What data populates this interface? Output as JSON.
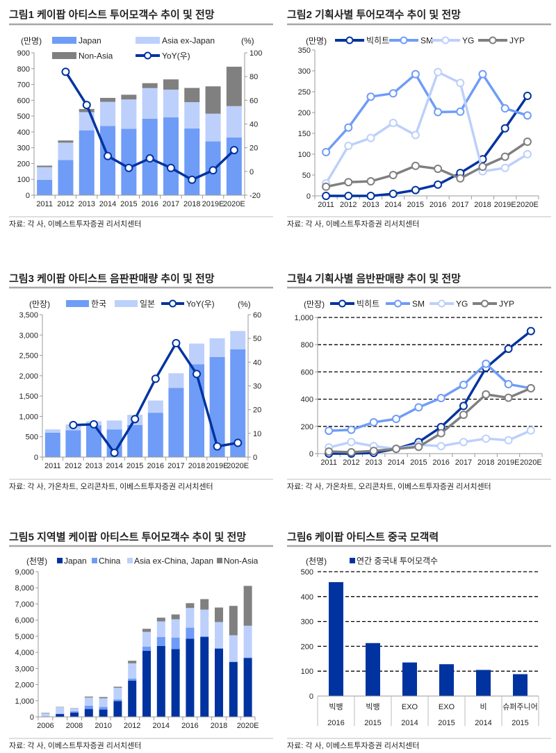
{
  "figures": [
    {
      "title": "그림1 케이팝 아티스트 투어모객수 추이 및 전망",
      "source": "자료: 각 사, 이베스트투자증권 리서치센터"
    },
    {
      "title": "그림2 기획사별 투어모객수 추이 및 전망",
      "source": "자료: 각 사, 이베스트투자증권 리서치센터"
    },
    {
      "title": "그림3 케이팝 아티스트 음판판매량 추이 및 전망",
      "source": "자료: 각 사, 가온차트, 오리콘차트, 이베스트투자증권 리서치센터"
    },
    {
      "title": "그림4 기획사별 음반판매량 추이 및 전망",
      "source": "자료: 각 사, 가온차트, 오리콘차트, 이베스트투자증권 리서치센터"
    },
    {
      "title": "그림5 지역별 케이팝 아티스트 투어모객수 추이 및 전망",
      "source": "자료: 각 사, 이베스트투자증권 리서치센터"
    },
    {
      "title": "그림6 케이팝 아티스트 중국 모객력",
      "source": "자료: 각 사, 이베스트투자증권 리서치센터"
    }
  ],
  "chart_data": [
    {
      "type": "bar",
      "stacked": true,
      "ylabel": "(만명)",
      "y2label": "(%)",
      "ylim": [
        0,
        900
      ],
      "ytick_step": 100,
      "y2lim": [
        -20,
        100
      ],
      "y2tick_step": 20,
      "grid": false,
      "categories": [
        "2011",
        "2012",
        "2013",
        "2014",
        "2015",
        "2016",
        "2017",
        "2018",
        "2019E",
        "2020E"
      ],
      "series": [
        {
          "name": "Japan",
          "kind": "bar",
          "color": "#6f9cf7",
          "values": [
            97,
            222,
            410,
            438,
            420,
            483,
            492,
            422,
            340,
            365
          ]
        },
        {
          "name": "Asia ex-Japan",
          "kind": "bar",
          "color": "#bcd0fb",
          "values": [
            80,
            110,
            115,
            152,
            185,
            194,
            175,
            166,
            175,
            198
          ]
        },
        {
          "name": "Non-Asia",
          "kind": "bar",
          "color": "#808080",
          "values": [
            10,
            14,
            20,
            25,
            30,
            31,
            65,
            90,
            173,
            249
          ]
        },
        {
          "name": "YoY(우)",
          "kind": "line",
          "axis": "right",
          "color": "#0033a0",
          "values": [
            null,
            84,
            56,
            13,
            3,
            11,
            3,
            -7,
            1,
            18
          ]
        }
      ]
    },
    {
      "type": "line",
      "ylabel": "(만명)",
      "ylim": [
        0,
        350
      ],
      "ytick_step": 50,
      "grid": false,
      "categories": [
        "2011",
        "2012",
        "2013",
        "2014",
        "2015",
        "2016",
        "2017",
        "2018",
        "2019E",
        "2020E"
      ],
      "series": [
        {
          "name": "빅히트",
          "kind": "line",
          "color": "#0033a0",
          "values": [
            0,
            0,
            0,
            5,
            14,
            27,
            55,
            88,
            162,
            240
          ]
        },
        {
          "name": "SM",
          "kind": "line",
          "color": "#6f9cf7",
          "values": [
            105,
            164,
            238,
            246,
            292,
            201,
            202,
            292,
            210,
            193
          ]
        },
        {
          "name": "YG",
          "kind": "line",
          "color": "#bcd0fb",
          "values": [
            30,
            120,
            139,
            175,
            146,
            297,
            271,
            59,
            67,
            100
          ]
        },
        {
          "name": "JYP",
          "kind": "line",
          "color": "#7f7f7f",
          "values": [
            22,
            33,
            35,
            50,
            72,
            65,
            42,
            70,
            94,
            130
          ]
        }
      ]
    },
    {
      "type": "bar",
      "stacked": true,
      "ylabel": "(만장)",
      "y2label": "(%)",
      "ylim": [
        0,
        3500
      ],
      "ytick_step": 500,
      "y2lim": [
        0,
        60
      ],
      "y2tick_step": 10,
      "grid": false,
      "categories": [
        "2011",
        "2012",
        "2013",
        "2014",
        "2015",
        "2016",
        "2017",
        "2018",
        "2019E",
        "2020E"
      ],
      "series": [
        {
          "name": "한국",
          "kind": "bar",
          "color": "#6f9cf7",
          "values": [
            600,
            660,
            780,
            680,
            790,
            1090,
            1700,
            2280,
            2460,
            2650
          ]
        },
        {
          "name": "일본",
          "kind": "bar",
          "color": "#bcd0fb",
          "values": [
            80,
            140,
            100,
            220,
            250,
            300,
            360,
            510,
            460,
            450
          ]
        },
        {
          "name": "YoY(우)",
          "kind": "line",
          "axis": "right",
          "color": "#0033a0",
          "values": [
            null,
            13.5,
            13.8,
            1.8,
            16,
            33,
            48,
            35,
            4.5,
            6
          ]
        }
      ]
    },
    {
      "type": "line",
      "ylabel": "(만장)",
      "ylim": [
        0,
        1000
      ],
      "ytick_step": 200,
      "grid": true,
      "categories": [
        "2011",
        "2012",
        "2013",
        "2014",
        "2015",
        "2016",
        "2017",
        "2018",
        "2019E",
        "2020E"
      ],
      "series": [
        {
          "name": "빅히트",
          "kind": "line",
          "color": "#0033a0",
          "values": [
            0,
            0,
            5,
            35,
            85,
            195,
            350,
            630,
            770,
            900
          ]
        },
        {
          "name": "SM",
          "kind": "line",
          "color": "#6f9cf7",
          "values": [
            168,
            175,
            230,
            255,
            340,
            408,
            505,
            660,
            510,
            480
          ]
        },
        {
          "name": "YG",
          "kind": "line",
          "color": "#bcd0fb",
          "values": [
            45,
            85,
            55,
            35,
            65,
            55,
            85,
            110,
            98,
            170
          ]
        },
        {
          "name": "JYP",
          "kind": "line",
          "color": "#7f7f7f",
          "values": [
            15,
            10,
            20,
            35,
            50,
            150,
            285,
            435,
            410,
            480
          ]
        }
      ]
    },
    {
      "type": "bar",
      "stacked": true,
      "ylabel": "(천명)",
      "ylim": [
        0,
        9000
      ],
      "ytick_step": 1000,
      "grid": false,
      "categories": [
        "2006",
        "2007",
        "2008",
        "2009",
        "2010",
        "2011",
        "2012",
        "2013",
        "2014",
        "2015",
        "2016",
        "2017",
        "2018",
        "2019E",
        "2020E"
      ],
      "xtick_labels": [
        "2006",
        "",
        "2008",
        "",
        "2010",
        "",
        "2012",
        "",
        "2014",
        "",
        "2016",
        "",
        "2018",
        "",
        "2020E"
      ],
      "series": [
        {
          "name": "Japan",
          "kind": "bar",
          "color": "#0033a0",
          "values": [
            30,
            180,
            270,
            490,
            460,
            980,
            2250,
            4100,
            4400,
            4200,
            4850,
            4950,
            4230,
            3400,
            3650
          ]
        },
        {
          "name": "China",
          "kind": "bar",
          "color": "#6f9cf7",
          "values": [
            0,
            20,
            80,
            200,
            160,
            100,
            120,
            250,
            550,
            720,
            680,
            50,
            40,
            20,
            30
          ]
        },
        {
          "name": "Asia ex-China, Japan",
          "kind": "bar",
          "color": "#bcd0fb",
          "values": [
            190,
            400,
            170,
            510,
            530,
            720,
            950,
            920,
            970,
            1130,
            1220,
            1650,
            1610,
            1640,
            1970
          ]
        },
        {
          "name": "Non-Asia",
          "kind": "bar",
          "color": "#808080",
          "values": [
            30,
            20,
            20,
            60,
            80,
            70,
            160,
            190,
            230,
            300,
            300,
            650,
            900,
            1820,
            2470
          ]
        }
      ]
    },
    {
      "type": "bar",
      "ylabel": "(천명)",
      "ylim": [
        0,
        500
      ],
      "ytick_step": 100,
      "grid": true,
      "categories": [
        {
          "artist": "빅뱅",
          "year": "2016"
        },
        {
          "artist": "빅뱅",
          "year": "2015"
        },
        {
          "artist": "EXO",
          "year": "2014"
        },
        {
          "artist": "EXO",
          "year": "2015"
        },
        {
          "artist": "비",
          "year": "2014"
        },
        {
          "artist": "슈퍼주니어",
          "year": "2015"
        }
      ],
      "series": [
        {
          "name": "연간 중국내 투어모객수",
          "kind": "bar",
          "color": "#0033a0",
          "values": [
            458,
            213,
            135,
            128,
            105,
            88
          ]
        }
      ]
    }
  ]
}
